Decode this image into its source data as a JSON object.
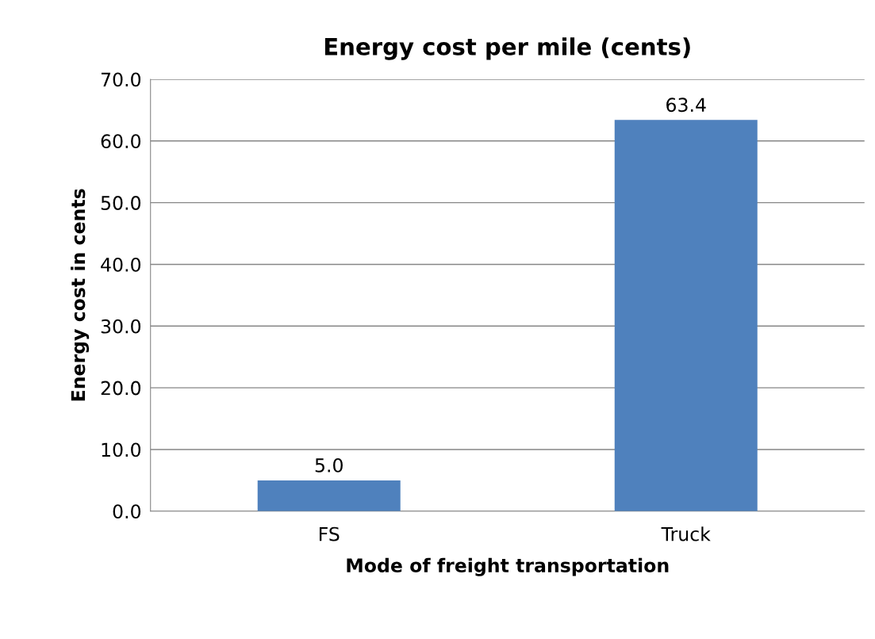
{
  "chart_data": {
    "type": "bar",
    "title": "Energy cost per mile (cents)",
    "xlabel": "Mode of freight transportation",
    "ylabel": "Energy cost in cents",
    "categories": [
      "FS",
      "Truck"
    ],
    "values": [
      5.0,
      63.4
    ],
    "value_labels": [
      "5.0",
      "63.4"
    ],
    "color": "#4f81bd",
    "ylim": [
      0,
      70
    ],
    "yticks": [
      {
        "value": 0,
        "label": "0.0"
      },
      {
        "value": 10,
        "label": "10.0"
      },
      {
        "value": 20,
        "label": "20.0"
      },
      {
        "value": 30,
        "label": "30.0"
      },
      {
        "value": 40,
        "label": "40.0"
      },
      {
        "value": 50,
        "label": "50.0"
      },
      {
        "value": 60,
        "label": "60.0"
      },
      {
        "value": 70,
        "label": "70.0"
      }
    ],
    "grid": "y"
  }
}
